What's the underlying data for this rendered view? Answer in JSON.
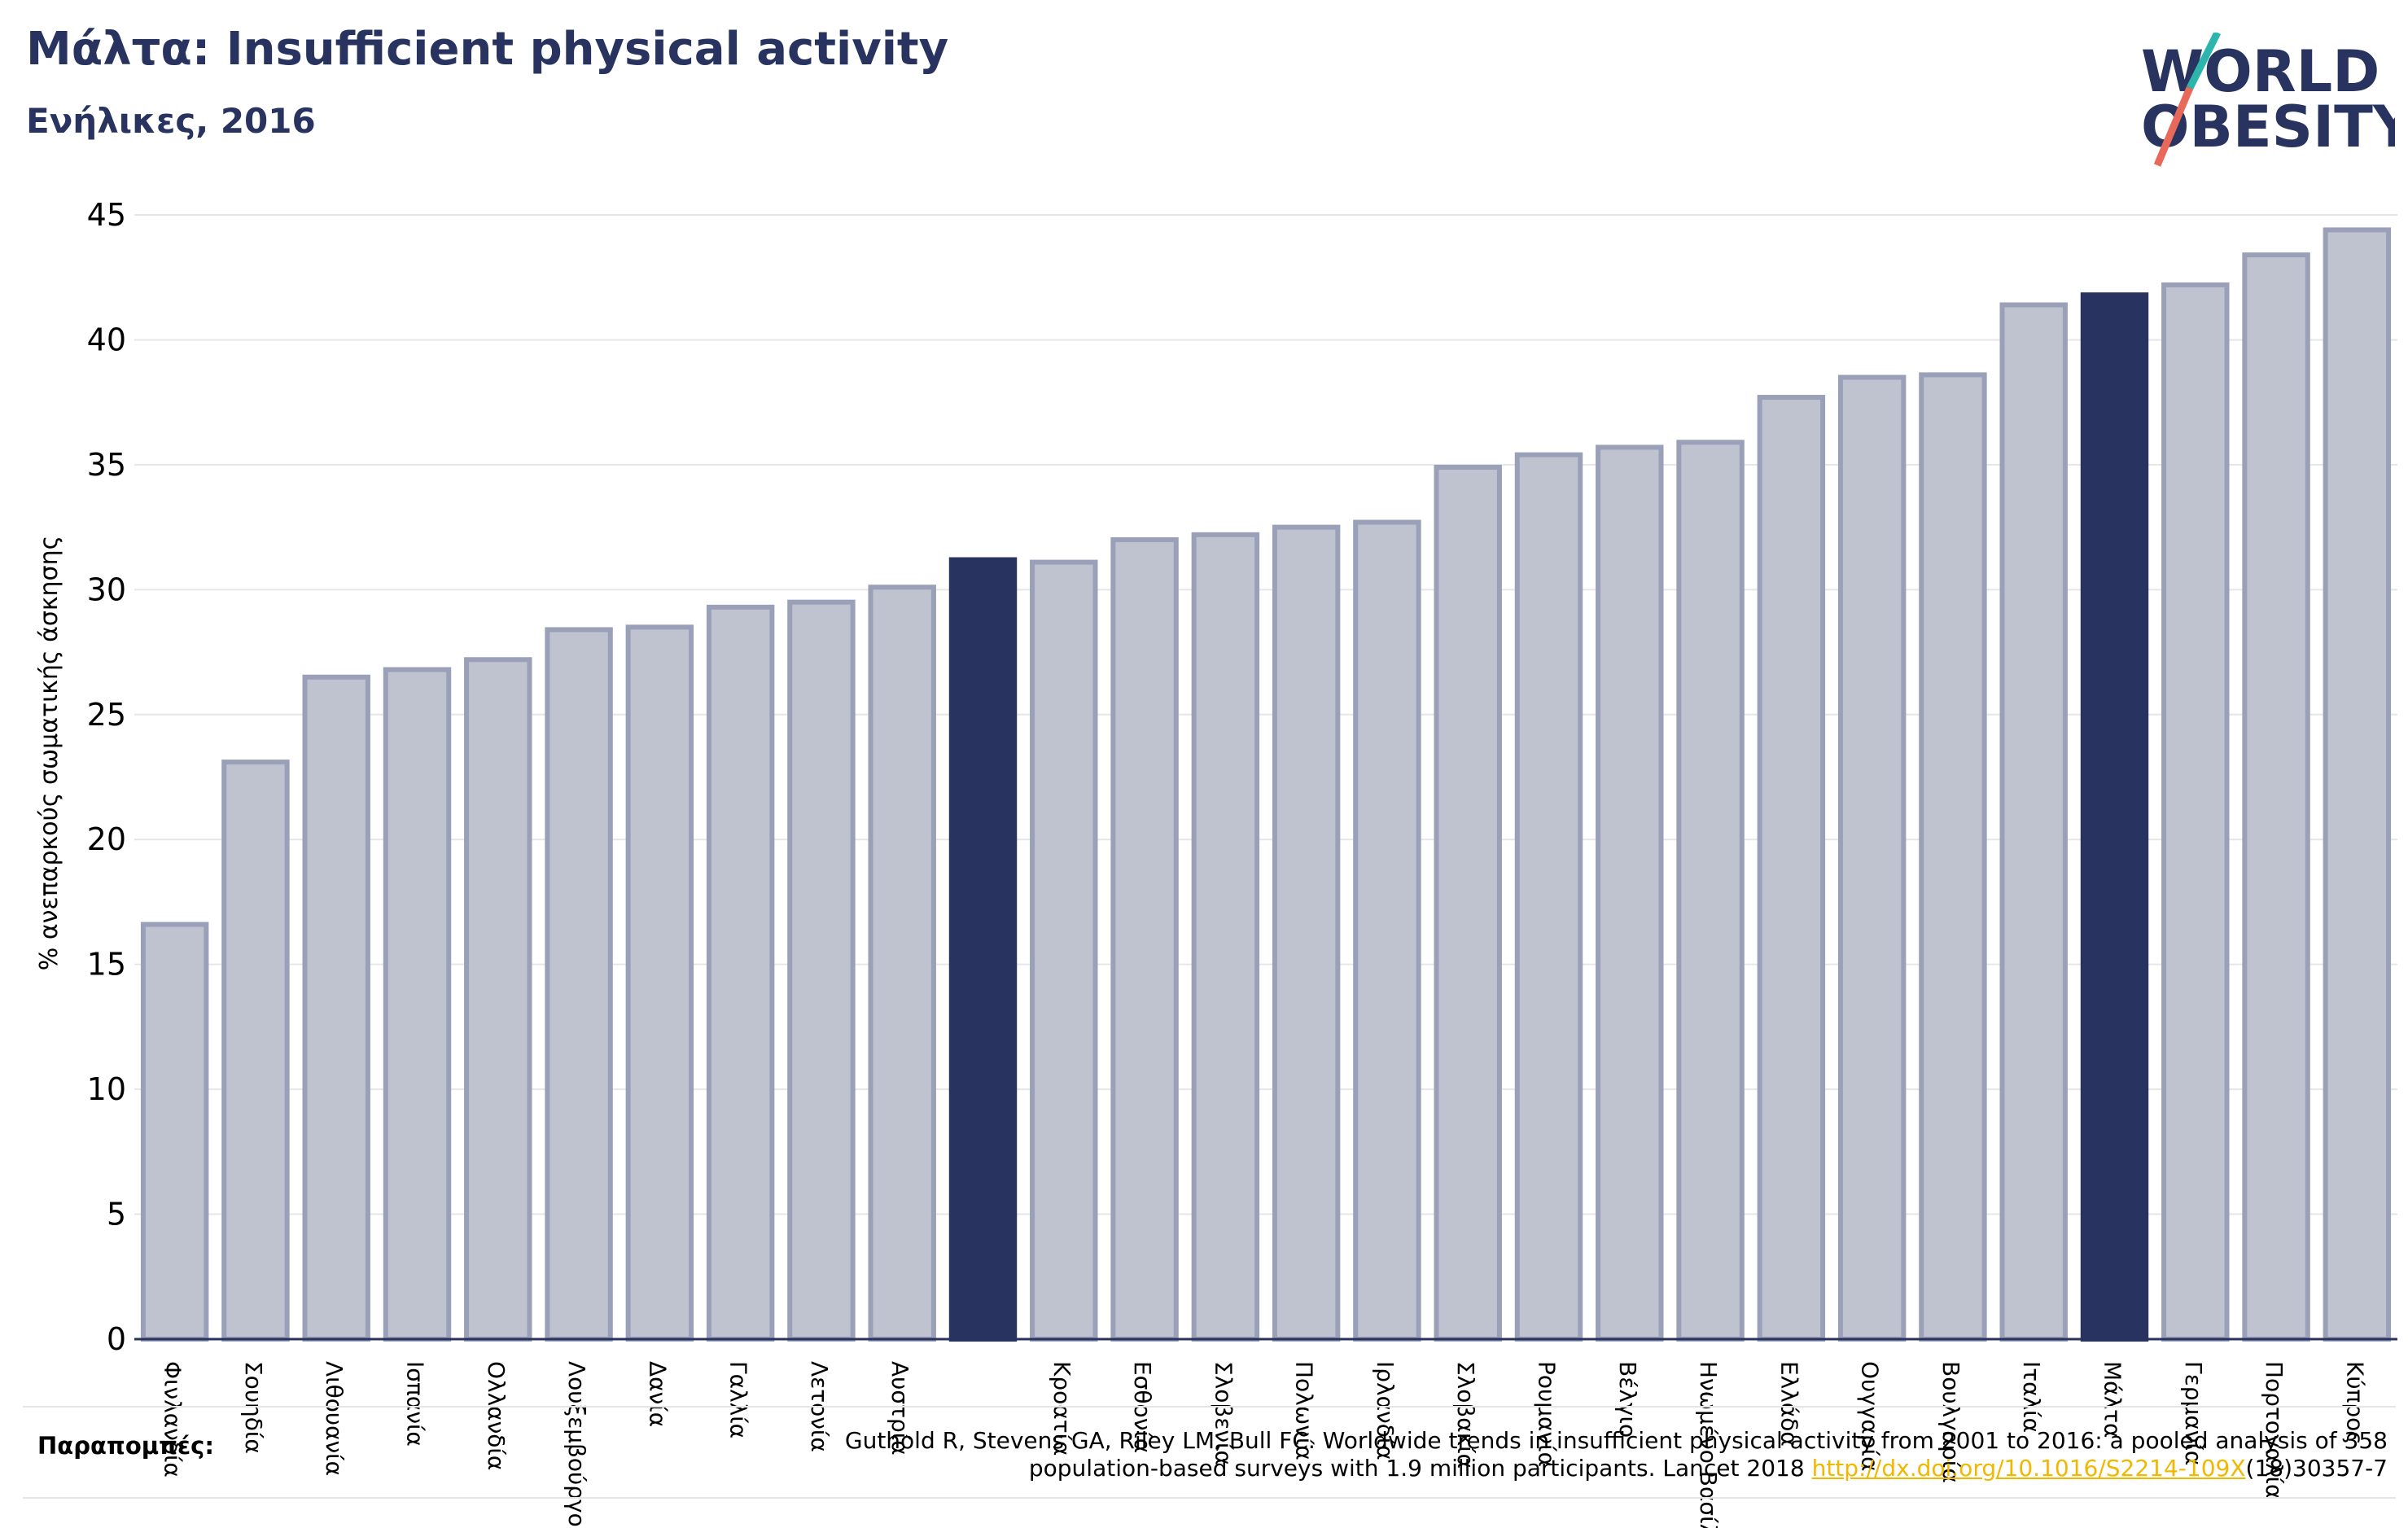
{
  "header": {
    "title": "Μάλτα: Insufficient physical activity",
    "subtitle": "Ενήλικες, 2016"
  },
  "logo": {
    "line1": "WORLD",
    "line2": "OBESITY",
    "colors": {
      "text": "#28345f",
      "slash_top": "#2bb5ad",
      "slash_bottom": "#e8685a"
    }
  },
  "colors": {
    "bar": "#bfc2cf",
    "bar_edge": "#9aa0b8",
    "highlight": "#28345f",
    "grid": "#e6e6e6",
    "axis": "#28345f"
  },
  "chart_data": {
    "type": "bar",
    "title": "Μάλτα: Insufficient physical activity",
    "subtitle": "Ενήλικες, 2016",
    "ylabel": "% ανεπαρκούς σωματικής άσκησης",
    "xlabel": "",
    "ylim": [
      0,
      45
    ],
    "yticks": [
      0,
      5,
      10,
      15,
      20,
      25,
      30,
      35,
      40,
      45
    ],
    "grid": true,
    "categories": [
      "Φινλανδία",
      "Σουηδία",
      "Λιθουανία",
      "Ισπανία",
      "Ολλανδία",
      "Λουξεμβούργο",
      "Δανία",
      "Γαλλία",
      "Λετονία",
      "Αυστρία",
      "",
      "Κροατία",
      "Εσθονία",
      "Σλοβενία",
      "Πολωνία",
      "Ιρλανδία",
      "Σλοβακία",
      "Ρουμανία",
      "Βέλγιο",
      "Ηνωμένο Βασίλειο",
      "Ελλάδα",
      "Ουγγαρία",
      "Βουλγαρία",
      "Ιταλία",
      "Μάλτα",
      "Γερμανία",
      "Πορτογαλία",
      "Κύπρος"
    ],
    "values": [
      16.6,
      23.1,
      26.5,
      26.8,
      27.2,
      28.4,
      28.5,
      29.3,
      29.5,
      30.1,
      31.2,
      31.1,
      32.0,
      32.2,
      32.5,
      32.7,
      34.9,
      35.4,
      35.7,
      35.9,
      37.7,
      38.5,
      38.6,
      41.4,
      41.8,
      42.2,
      43.4,
      44.4
    ],
    "highlighted": [
      10,
      24
    ]
  },
  "references": {
    "label": "Παραπομπές:",
    "line1": "Guthold R, Stevens GA, Riley LM, Bull FC. Worldwide trends in insufficient physical activity from 2001 to 2016: a pooled analysis of 358",
    "line2_prefix": "population-based surveys with 1.9 million participants. Lancet 2018 ",
    "link": "http://dx.doi.org/10.1016/S2214-109X",
    "line2_suffix": "(18)30357-7"
  }
}
